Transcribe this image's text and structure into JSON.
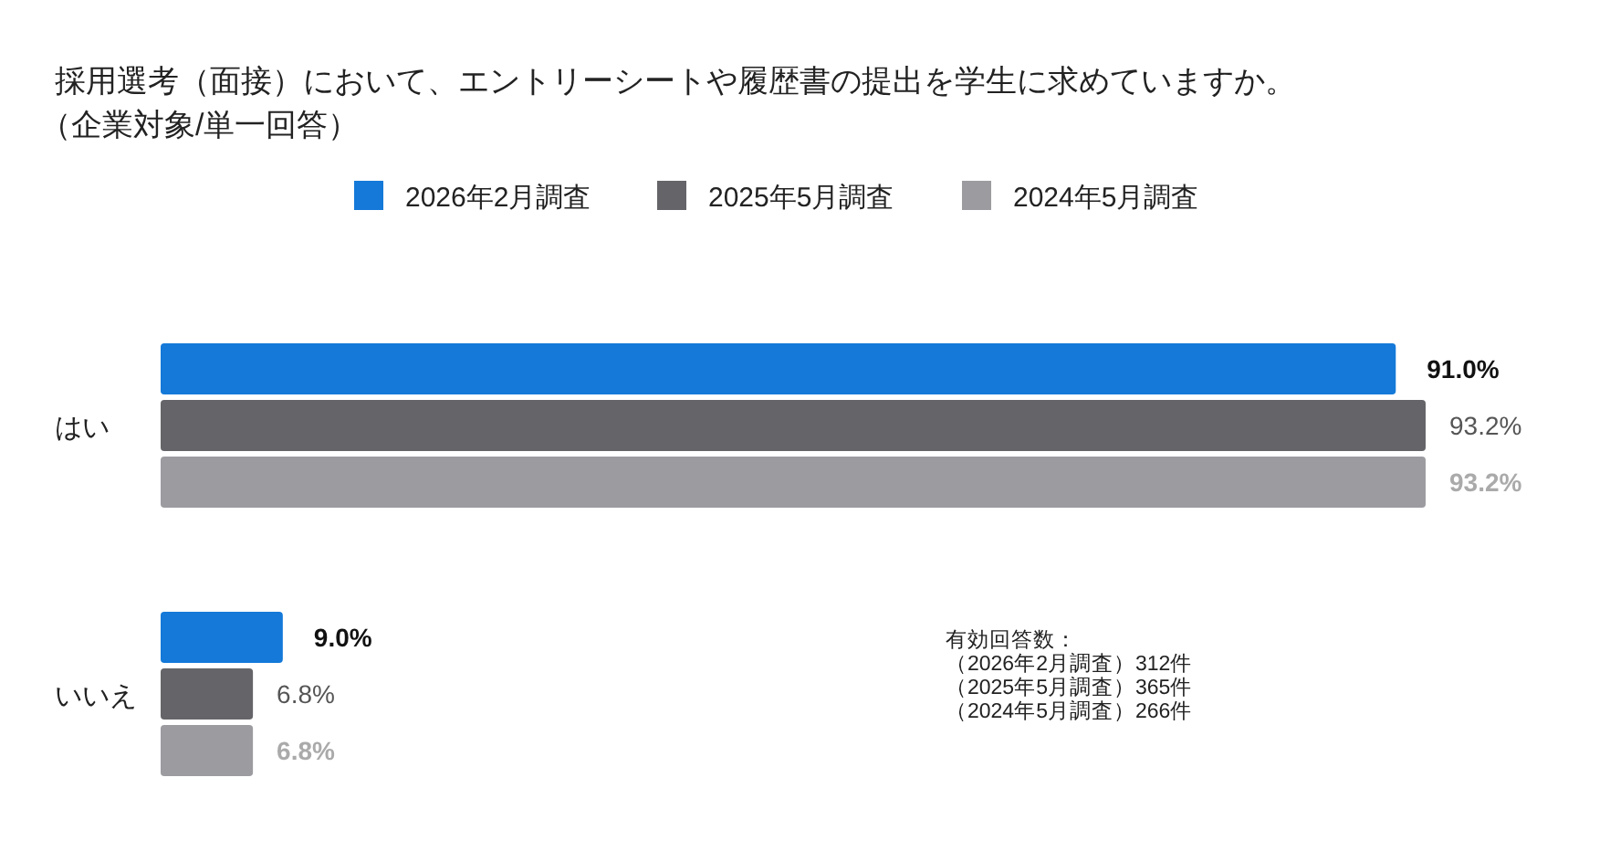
{
  "chart_data": {
    "type": "bar",
    "orientation": "horizontal",
    "title": "採用選考（面接）において、エントリーシートや履歴書の提出を学生に求めていますか。",
    "subtitle": "（企業対象/単一回答）",
    "categories": [
      "はい",
      "いいえ"
    ],
    "legend": "top",
    "series": [
      {
        "name": "2026年2月調査",
        "color": "#1479d8",
        "values": [
          91.0,
          9.0
        ],
        "value_labels": [
          "91.0%",
          "9.0%"
        ]
      },
      {
        "name": "2025年5月調査",
        "color": "#656469",
        "values": [
          93.2,
          6.8
        ],
        "value_labels": [
          "93.2%",
          "6.8%"
        ]
      },
      {
        "name": "2024年5月調査",
        "color": "#9c9ba0",
        "values": [
          93.2,
          6.8
        ],
        "value_labels": [
          "93.2%",
          "6.8%"
        ]
      }
    ],
    "annotations": [
      "有効回答数：",
      "（2026年2月調査）312件",
      "（2025年5月調査）365件",
      "（2024年5月調査）266件"
    ]
  }
}
